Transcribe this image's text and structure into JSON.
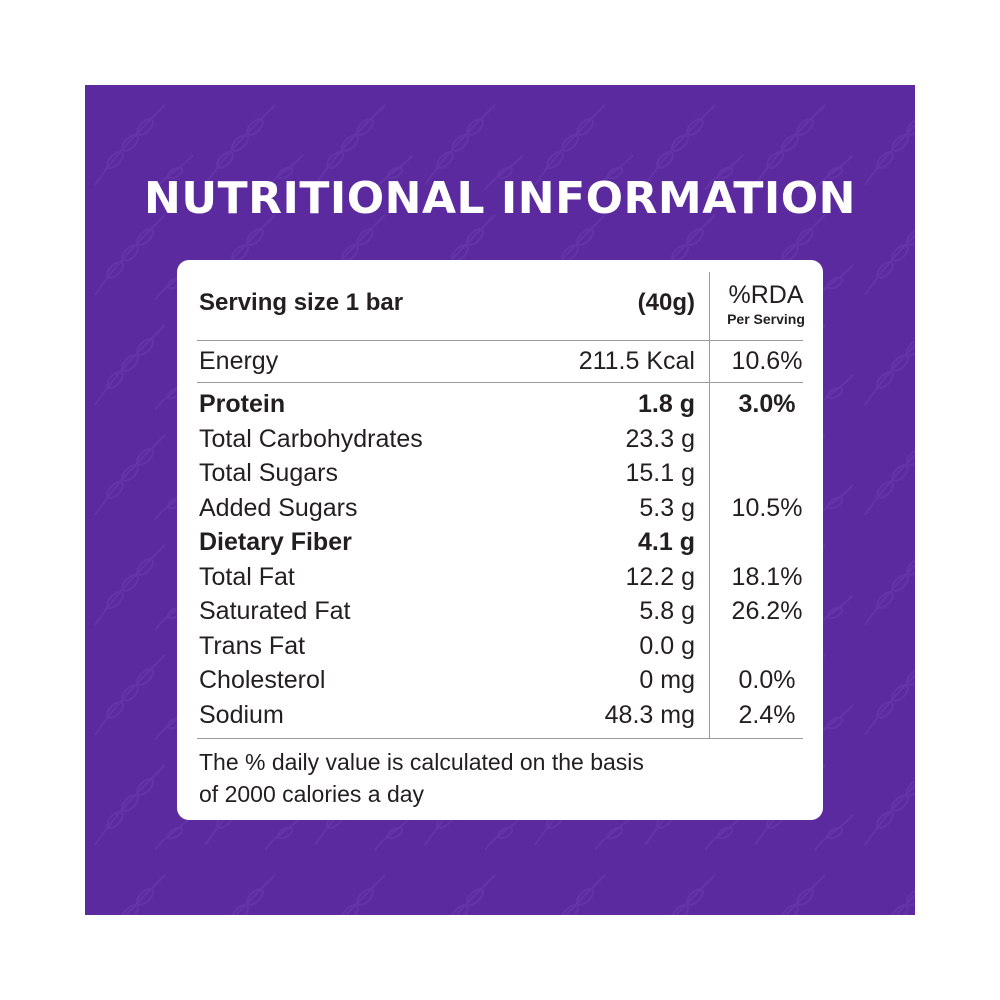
{
  "title": "NUTRITIONAL INFORMATION",
  "colors": {
    "background": "#5a2a9e",
    "card": "#ffffff",
    "text": "#231f20"
  },
  "header": {
    "serving_label": "Serving size 1 bar",
    "serving_amount": "(40g)",
    "rda_label": "%RDA",
    "rda_sub": "Per Serving"
  },
  "energy": {
    "label": "Energy",
    "amount": "211.5 Kcal",
    "rda": "10.6%"
  },
  "rows": [
    {
      "label": "Protein",
      "amount": "1.8 g",
      "rda": "3.0%",
      "bold": true
    },
    {
      "label": "Total Carbohydrates",
      "amount": "23.3 g",
      "rda": "",
      "bold": false
    },
    {
      "label": "Total Sugars",
      "amount": "15.1 g",
      "rda": "",
      "bold": false
    },
    {
      "label": "Added Sugars",
      "amount": "5.3 g",
      "rda": "10.5%",
      "bold": false
    },
    {
      "label": "Dietary Fiber",
      "amount": "4.1 g",
      "rda": "",
      "bold": true
    },
    {
      "label": "Total Fat",
      "amount": "12.2 g",
      "rda": "18.1%",
      "bold": false
    },
    {
      "label": "Saturated Fat",
      "amount": "5.8 g",
      "rda": "26.2%",
      "bold": false
    },
    {
      "label": "Trans Fat",
      "amount": "0.0 g",
      "rda": "",
      "bold": false
    },
    {
      "label": "Cholesterol",
      "amount": "0 mg",
      "rda": "0.0%",
      "bold": false
    },
    {
      "label": "Sodium",
      "amount": "48.3 mg",
      "rda": "2.4%",
      "bold": false
    }
  ],
  "footnote": {
    "line1": "The % daily value is calculated on the basis",
    "line2": "of 2000 calories a day"
  }
}
